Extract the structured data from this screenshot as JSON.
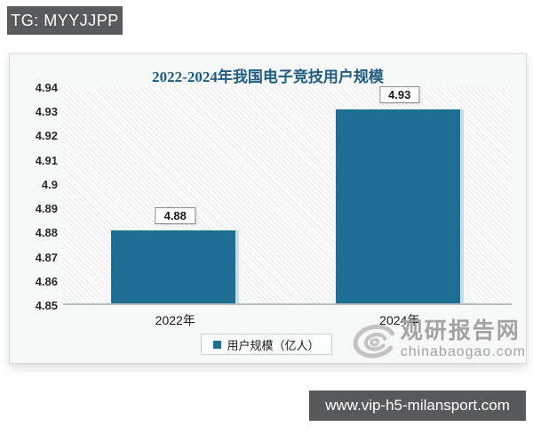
{
  "badge": {
    "label": "TG: MYYJJPP"
  },
  "chart_data": {
    "type": "bar",
    "title": "2022-2024年我国电子竞技用户规模",
    "categories": [
      "2022年",
      "2024年"
    ],
    "values": [
      4.88,
      4.93
    ],
    "value_labels": [
      "4.88",
      "4.93"
    ],
    "ylim": [
      4.85,
      4.94
    ],
    "yticks": [
      "4.94",
      "4.93",
      "4.92",
      "4.91",
      "4.9",
      "4.89",
      "4.88",
      "4.87",
      "4.86",
      "4.85"
    ],
    "xlabel": "",
    "ylabel": "",
    "grid": false,
    "legend_position": "bottom",
    "legend_label": "用户规模（亿人）",
    "bar_color": "#1f6e93",
    "title_color": "#1f5c7e"
  },
  "watermark": {
    "site_name": "观研报告网",
    "site_url": "chinabaogao.com",
    "logo": "swirl-logo"
  },
  "footer": {
    "url": "www.vip-h5-milansport.com"
  }
}
